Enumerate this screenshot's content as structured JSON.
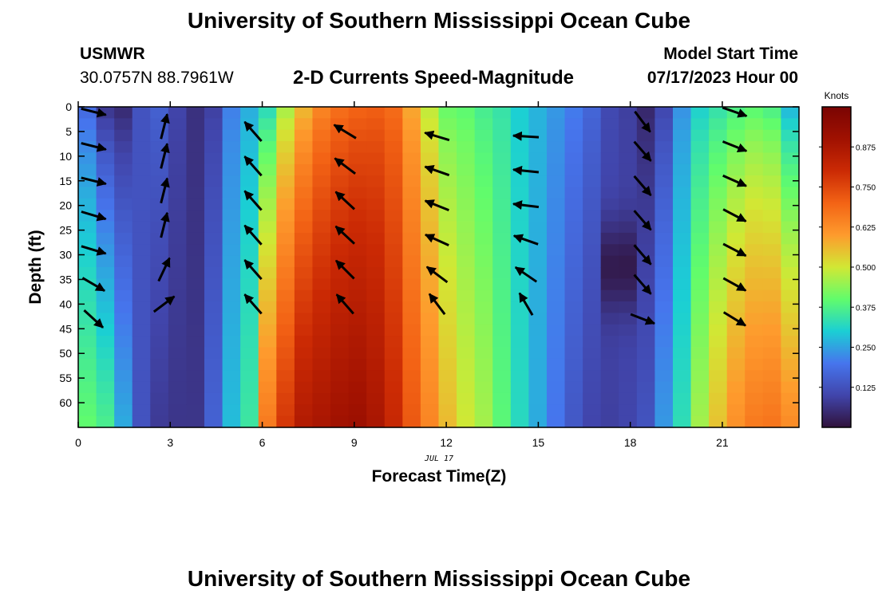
{
  "header": {
    "title": "University of Southern Mississippi Ocean Cube",
    "station": "USMWR",
    "coords": "30.0757N  88.7961W",
    "chart_title": "2-D Currents Speed-Magnitude",
    "model_label": "Model Start Time",
    "model_time": "07/17/2023 Hour 00"
  },
  "footer": {
    "title": "University of Southern Mississippi Ocean Cube"
  },
  "chart_data": {
    "type": "heatmap",
    "title": "2-D Currents Speed-Magnitude",
    "xlabel": "Forecast Time(Z)",
    "ylabel": "Depth (ft)",
    "date_label": "JUL 17",
    "xlim": [
      0,
      23.5
    ],
    "ylim": [
      0,
      65
    ],
    "y_inverted": true,
    "x_ticks": [
      0,
      3,
      6,
      9,
      12,
      15,
      18,
      21
    ],
    "y_ticks": [
      0,
      5,
      10,
      15,
      20,
      25,
      30,
      35,
      40,
      45,
      50,
      55,
      60
    ],
    "colorbar": {
      "label": "Knots",
      "range": [
        0,
        1.0
      ],
      "ticks": [
        "0.125",
        "0.250",
        "0.375",
        "0.500",
        "0.625",
        "0.750",
        "0.875"
      ]
    },
    "speed_profile_surface": [
      0.17,
      0.06,
      0.04,
      0.13,
      0.16,
      0.1,
      0.06,
      0.09,
      0.21,
      0.26,
      0.31,
      0.45,
      0.55,
      0.63,
      0.67,
      0.69,
      0.7,
      0.68,
      0.58,
      0.48,
      0.4,
      0.39,
      0.36,
      0.34,
      0.3,
      0.27,
      0.24,
      0.21,
      0.17,
      0.11,
      0.09,
      0.04,
      0.1,
      0.23,
      0.3,
      0.33,
      0.36,
      0.38,
      0.36,
      0.26
    ],
    "speed_profile_bottom": [
      0.4,
      0.37,
      0.26,
      0.13,
      0.08,
      0.07,
      0.07,
      0.16,
      0.28,
      0.35,
      0.66,
      0.78,
      0.86,
      0.88,
      0.9,
      0.91,
      0.88,
      0.81,
      0.72,
      0.64,
      0.56,
      0.5,
      0.46,
      0.39,
      0.32,
      0.26,
      0.2,
      0.14,
      0.1,
      0.09,
      0.1,
      0.13,
      0.24,
      0.33,
      0.46,
      0.55,
      0.62,
      0.66,
      0.67,
      0.63
    ],
    "vector_columns": [
      {
        "x": 0.5,
        "depths": [
          1,
          8,
          15,
          22,
          29,
          36,
          43
        ],
        "dx": [
          1,
          1,
          1,
          1,
          1,
          0.6,
          0.6
        ],
        "dy": [
          0.25,
          0.25,
          0.25,
          0.3,
          0.3,
          0.35,
          0.55
        ]
      },
      {
        "x": 2.8,
        "depths": [
          4,
          10,
          17,
          24,
          33,
          40
        ],
        "dx": [
          0.25,
          0.25,
          0.25,
          0.25,
          0.45,
          0.8
        ],
        "dy": [
          -1,
          -1,
          -1,
          -1,
          -0.95,
          -0.6
        ]
      },
      {
        "x": 5.7,
        "depths": [
          5,
          12,
          19,
          26,
          33,
          40
        ],
        "dx": [
          -0.7,
          -0.7,
          -0.7,
          -0.7,
          -0.7,
          -0.7
        ],
        "dy": [
          -0.8,
          -0.8,
          -0.8,
          -0.8,
          -0.8,
          -0.8
        ]
      },
      {
        "x": 8.7,
        "depths": [
          5,
          12,
          19,
          26,
          33,
          40
        ],
        "dx": [
          -0.9,
          -0.8,
          -0.75,
          -0.75,
          -0.75,
          -0.7
        ],
        "dy": [
          -0.55,
          -0.6,
          -0.7,
          -0.7,
          -0.75,
          -0.8
        ]
      },
      {
        "x": 11.7,
        "depths": [
          6,
          13,
          20,
          27,
          34,
          40
        ],
        "dx": [
          -1,
          -1,
          -1,
          -1,
          -0.8,
          -0.6
        ],
        "dy": [
          -0.3,
          -0.35,
          -0.4,
          -0.45,
          -0.6,
          -0.8
        ]
      },
      {
        "x": 14.6,
        "depths": [
          6,
          13,
          20,
          27,
          34,
          40
        ],
        "dx": [
          -1,
          -1,
          -1,
          -1,
          -0.8,
          -0.5
        ],
        "dy": [
          -0.06,
          -0.1,
          -0.12,
          -0.35,
          -0.55,
          -0.85
        ]
      },
      {
        "x": 18.4,
        "depths": [
          3,
          9,
          16,
          23,
          30,
          36,
          43
        ],
        "dx": [
          0.6,
          0.65,
          0.65,
          0.65,
          0.65,
          0.65,
          0.9
        ],
        "dy": [
          0.8,
          0.75,
          0.75,
          0.75,
          0.75,
          0.75,
          0.35
        ]
      },
      {
        "x": 21.4,
        "depths": [
          1,
          8,
          15,
          22,
          29,
          36,
          43
        ],
        "dx": [
          1,
          1,
          1,
          0.95,
          0.95,
          0.9,
          0.9
        ],
        "dy": [
          0.35,
          0.4,
          0.45,
          0.5,
          0.5,
          0.5,
          0.55
        ]
      }
    ]
  }
}
